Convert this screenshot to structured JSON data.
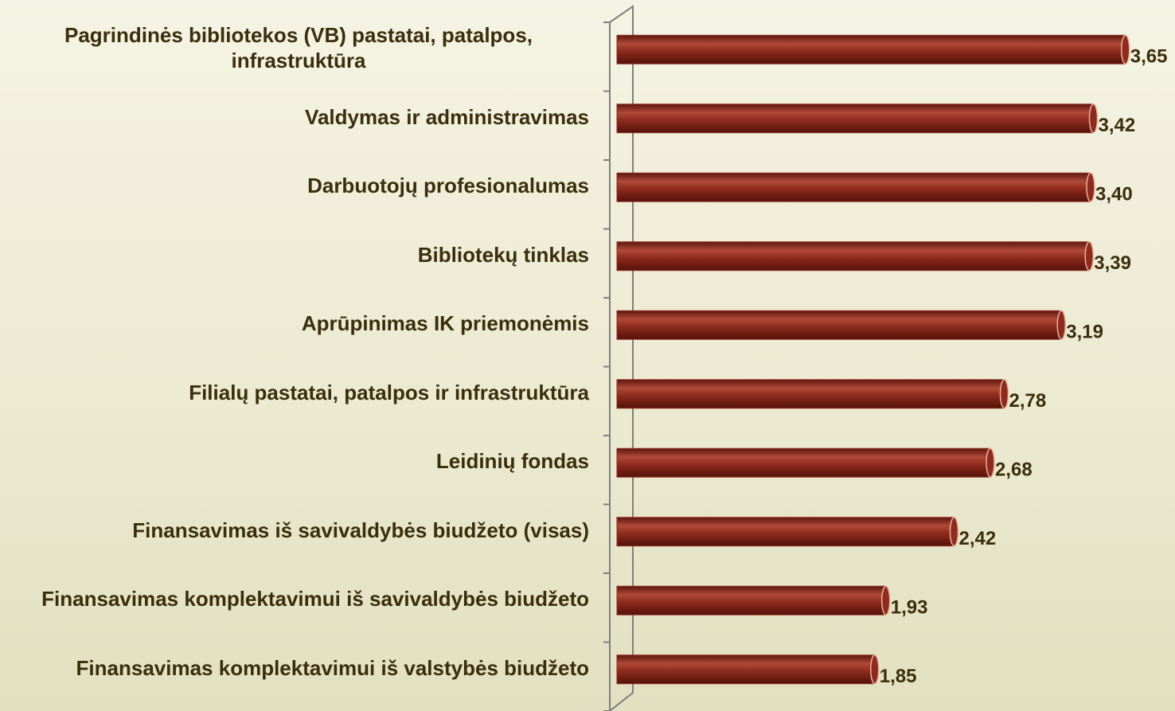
{
  "chart_data": {
    "type": "bar",
    "orientation": "horizontal",
    "categories": [
      "Pagrindinės bibliotekos (VB) pastatai, patalpos, infrastruktūra",
      "Valdymas ir administravimas",
      "Darbuotojų profesionalumas",
      "Bibliotekų tinklas",
      "Aprūpinimas IK priemonėmis",
      "Filialų pastatai, patalpos ir infrastruktūra",
      "Leidinių fondas",
      "Finansavimas iš savivaldybės biudžeto (visas)",
      "Finansavimas komplektavimui iš savivaldybės biudžeto",
      "Finansavimas komplektavimui iš valstybės biudžeto"
    ],
    "values": [
      3.65,
      3.42,
      3.4,
      3.39,
      3.19,
      2.78,
      2.68,
      2.42,
      1.93,
      1.85
    ],
    "value_labels": [
      "3,65",
      "3,42",
      "3,40",
      "3,39",
      "3,19",
      "2,78",
      "2,68",
      "2,42",
      "1,93",
      "1,85"
    ],
    "color": "#8f2b1e",
    "xlim": [
      0,
      4
    ]
  }
}
